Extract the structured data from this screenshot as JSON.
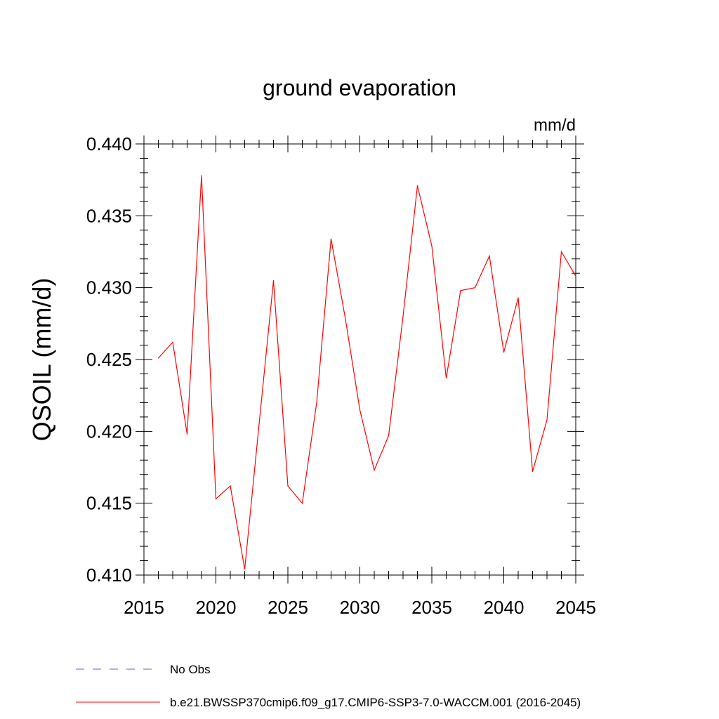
{
  "chart_data": {
    "type": "line",
    "title": "ground evaporation",
    "units": "mm/d",
    "xlabel": "",
    "ylabel": "QSOIL  (mm/d)",
    "xlim": [
      2015,
      2045
    ],
    "ylim": [
      0.41,
      0.44
    ],
    "x_ticks": [
      "2015",
      "2020",
      "2025",
      "2030",
      "2035",
      "2040",
      "2045"
    ],
    "y_ticks": [
      "0.410",
      "0.415",
      "0.420",
      "0.425",
      "0.430",
      "0.435",
      "0.440"
    ],
    "series": [
      {
        "name": "b.e21.BWSSP370cmip6.f09_g17.CMIP6-SSP3-7.0-WACCM.001 (2016-2045)",
        "color": "#ff0000",
        "x": [
          2016,
          2017,
          2018,
          2019,
          2020,
          2021,
          2022,
          2023,
          2024,
          2025,
          2026,
          2027,
          2028,
          2029,
          2030,
          2031,
          2032,
          2033,
          2034,
          2035,
          2036,
          2037,
          2038,
          2039,
          2040,
          2041,
          2042,
          2043,
          2044,
          2045
        ],
        "values": [
          0.4251,
          0.4262,
          0.4198,
          0.4378,
          0.4153,
          0.4162,
          0.4104,
          0.4205,
          0.4305,
          0.4162,
          0.415,
          0.422,
          0.4334,
          0.4278,
          0.4215,
          0.4173,
          0.4197,
          0.428,
          0.4371,
          0.4329,
          0.4237,
          0.4298,
          0.43,
          0.4322,
          0.4255,
          0.4293,
          0.4172,
          0.4208,
          0.4325,
          0.4308
        ]
      }
    ],
    "legend": [
      {
        "label": "No Obs",
        "color": "#6a5acd",
        "style": "dashed"
      },
      {
        "label": "b.e21.BWSSP370cmip6.f09_g17.CMIP6-SSP3-7.0-WACCM.001 (2016-2045)",
        "color": "#ff0000",
        "style": "solid"
      }
    ]
  }
}
